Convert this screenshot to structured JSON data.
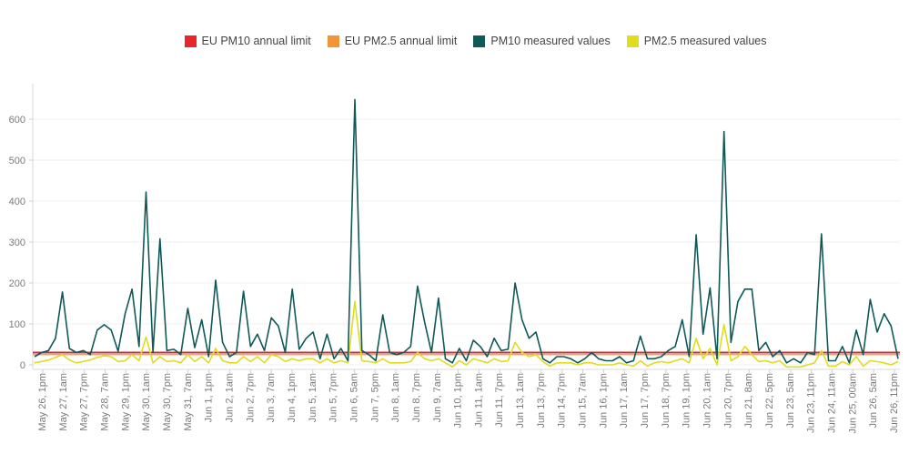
{
  "chart_data": {
    "type": "line",
    "legend": [
      {
        "name": "EU PM10 annual limit",
        "color": "#e8262a"
      },
      {
        "name": "EU PM2.5 annual limit",
        "color": "#f29438"
      },
      {
        "name": "PM10 measured values",
        "color": "#0f5959"
      },
      {
        "name": "PM2.5 measured values",
        "color": "#e0dc1e"
      }
    ],
    "ylim": [
      0,
      690
    ],
    "yticks": [
      0,
      100,
      200,
      300,
      400,
      500,
      600
    ],
    "reference_lines": [
      {
        "name": "EU PM10 annual limit",
        "value": 30,
        "color": "#c93036"
      },
      {
        "name": "EU PM2.5 annual limit",
        "value": 25,
        "color": "#f29438"
      }
    ],
    "x_tick_labels": [
      "May 26, 1pm",
      "May 27, 1am",
      "May 27, 7pm",
      "May 28, 7am",
      "May 29, 1pm",
      "May 30, 1am",
      "May 30, 7pm",
      "May 31, 7am",
      "Jun 1, 1pm",
      "Jun 2, 1am",
      "Jun 2, 7pm",
      "Jun 3, 7am",
      "Jun 4, 1pm",
      "Jun 5, 1am",
      "Jun 5, 7pm",
      "Jun 6, 5am",
      "Jun 7, 5pm",
      "Jun 8, 1am",
      "Jun 8, 7pm",
      "Jun 9, 7am",
      "Jun 10, 1pm",
      "Jun 11, 1am",
      "Jun 11, 7pm",
      "Jun 13, 1am",
      "Jun 13, 7pm",
      "Jun 14, 7pm",
      "Jun 15, 7am",
      "Jun 16, 1pm",
      "Jun 17, 1am",
      "Jun 17, 7pm",
      "Jun 18, 7pm",
      "Jun 19, 1pm",
      "Jun 20, 1am",
      "Jun 20, 7pm",
      "Jun 21, 8am",
      "Jun 22, 5pm",
      "Jun 23, 5am",
      "Jun 23, 11pm",
      "Jun 24, 11am",
      "Jun 25, 00am",
      "Jun 26, 5am",
      "Jun 26, 11pm"
    ],
    "series": [
      {
        "name": "PM10 measured values",
        "color": "#0f5959",
        "values": [
          20,
          30,
          35,
          65,
          178,
          40,
          30,
          35,
          25,
          85,
          98,
          85,
          33,
          125,
          185,
          45,
          422,
          30,
          308,
          35,
          38,
          25,
          138,
          42,
          110,
          20,
          207,
          55,
          20,
          30,
          180,
          45,
          75,
          35,
          115,
          95,
          30,
          185,
          38,
          65,
          80,
          15,
          75,
          15,
          40,
          10,
          648,
          35,
          25,
          10,
          122,
          30,
          25,
          30,
          45,
          192,
          105,
          30,
          163,
          15,
          5,
          40,
          10,
          60,
          45,
          20,
          65,
          35,
          38,
          200,
          110,
          65,
          80,
          15,
          5,
          20,
          20,
          15,
          5,
          15,
          30,
          15,
          10,
          10,
          20,
          5,
          10,
          70,
          15,
          15,
          20,
          35,
          45,
          110,
          20,
          318,
          75,
          188,
          15,
          570,
          55,
          155,
          185,
          185,
          35,
          55,
          20,
          35,
          5,
          15,
          5,
          30,
          25,
          320,
          10,
          10,
          45,
          5,
          85,
          25,
          160,
          80,
          125,
          95,
          15
        ]
      },
      {
        "name": "PM2.5 measured values",
        "color": "#e0dc1e",
        "values": [
          5,
          8,
          12,
          18,
          25,
          12,
          5,
          8,
          12,
          18,
          22,
          20,
          8,
          10,
          25,
          10,
          68,
          5,
          20,
          8,
          10,
          5,
          25,
          8,
          20,
          5,
          40,
          10,
          5,
          5,
          20,
          8,
          20,
          5,
          25,
          20,
          8,
          15,
          10,
          15,
          15,
          5,
          15,
          5,
          10,
          5,
          155,
          10,
          8,
          5,
          15,
          5,
          5,
          5,
          8,
          30,
          15,
          10,
          15,
          5,
          -5,
          10,
          0,
          15,
          10,
          5,
          15,
          8,
          10,
          55,
          30,
          20,
          25,
          8,
          -3,
          5,
          5,
          5,
          0,
          5,
          5,
          0,
          0,
          0,
          5,
          0,
          -3,
          10,
          -3,
          5,
          8,
          5,
          10,
          15,
          5,
          65,
          15,
          40,
          0,
          98,
          10,
          20,
          45,
          25,
          8,
          10,
          5,
          10,
          -5,
          -5,
          -5,
          0,
          5,
          35,
          -3,
          -3,
          8,
          0,
          20,
          -3,
          10,
          8,
          5,
          0,
          8
        ]
      }
    ]
  }
}
